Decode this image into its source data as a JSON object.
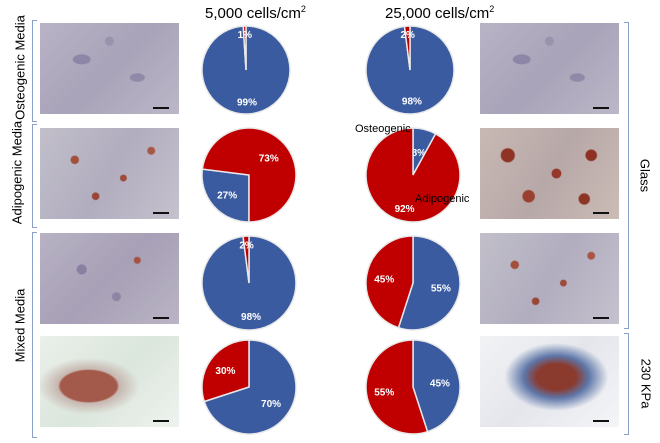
{
  "columns": [
    {
      "label": "5,000 cells/cm",
      "sup": "2"
    },
    {
      "label": "25,000 cells/cm",
      "sup": "2"
    }
  ],
  "row_labels_left": [
    "Osteogenic Media",
    "Adipogenic Media",
    "Mixed Media"
  ],
  "row_labels_right": [
    "Glass",
    "230 KPa"
  ],
  "annotations": {
    "osteogenic": "Osteogenic",
    "adipogenic": "Adipogenic"
  },
  "colors": {
    "osteogenic": "#3a5ba0",
    "adipogenic": "#c00000",
    "edge": "#e8e8e8"
  },
  "chart_data": [
    {
      "type": "pie",
      "row": "Osteogenic Media",
      "density": "5,000 cells/cm2",
      "slices": [
        {
          "name": "Osteogenic",
          "value": 99,
          "label": "99%"
        },
        {
          "name": "Adipogenic",
          "value": 1,
          "label": "1%"
        }
      ]
    },
    {
      "type": "pie",
      "row": "Osteogenic Media",
      "density": "25,000 cells/cm2",
      "slices": [
        {
          "name": "Osteogenic",
          "value": 98,
          "label": "98%"
        },
        {
          "name": "Adipogenic",
          "value": 2,
          "label": "2%"
        }
      ]
    },
    {
      "type": "pie",
      "row": "Adipogenic Media",
      "density": "5,000 cells/cm2",
      "slices": [
        {
          "name": "Osteogenic",
          "value": 27,
          "label": "27%"
        },
        {
          "name": "Adipogenic",
          "value": 73,
          "label": "73%"
        }
      ]
    },
    {
      "type": "pie",
      "row": "Adipogenic Media",
      "density": "25,000 cells/cm2",
      "slices": [
        {
          "name": "Osteogenic",
          "value": 8,
          "label": "8%"
        },
        {
          "name": "Adipogenic",
          "value": 92,
          "label": "92%"
        }
      ]
    },
    {
      "type": "pie",
      "row": "Mixed Media (Glass)",
      "density": "5,000 cells/cm2",
      "slices": [
        {
          "name": "Osteogenic",
          "value": 98,
          "label": "98%"
        },
        {
          "name": "Adipogenic",
          "value": 2,
          "label": "2%"
        }
      ]
    },
    {
      "type": "pie",
      "row": "Mixed Media (Glass)",
      "density": "25,000 cells/cm2",
      "slices": [
        {
          "name": "Osteogenic",
          "value": 55,
          "label": "55%"
        },
        {
          "name": "Adipogenic",
          "value": 45,
          "label": "45%"
        }
      ]
    },
    {
      "type": "pie",
      "row": "Mixed Media (230 KPa)",
      "density": "5,000 cells/cm2",
      "slices": [
        {
          "name": "Osteogenic",
          "value": 70,
          "label": "70%"
        },
        {
          "name": "Adipogenic",
          "value": 30,
          "label": "30%"
        }
      ]
    },
    {
      "type": "pie",
      "row": "Mixed Media (230 KPa)",
      "density": "25,000 cells/cm2",
      "slices": [
        {
          "name": "Osteogenic",
          "value": 45,
          "label": "45%"
        },
        {
          "name": "Adipogenic",
          "value": 55,
          "label": "55%"
        }
      ]
    }
  ]
}
